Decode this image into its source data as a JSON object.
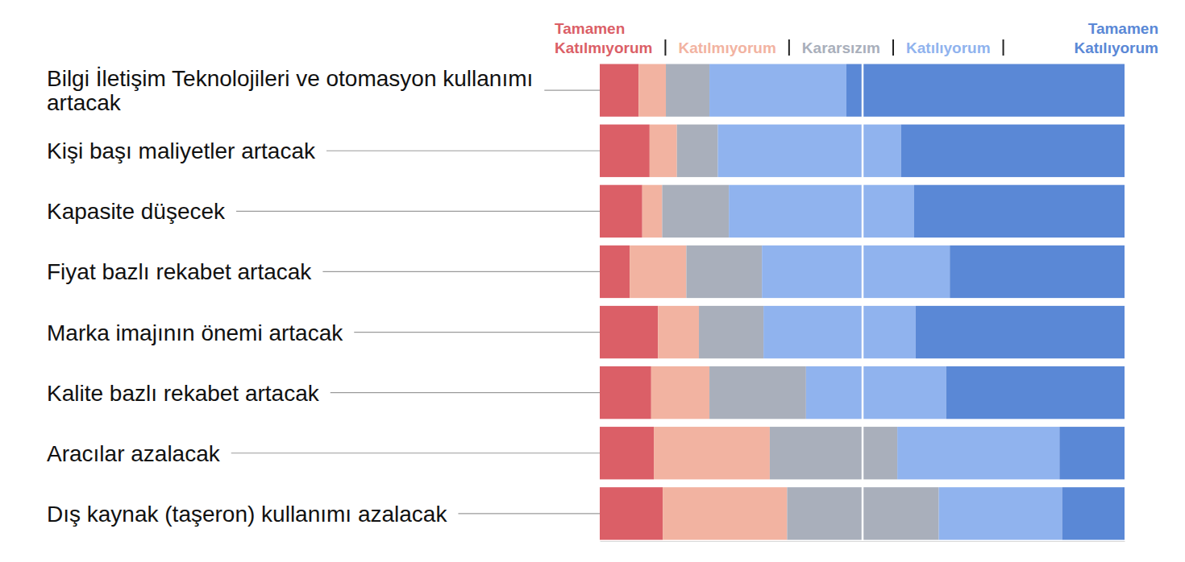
{
  "chart_data": {
    "type": "bar",
    "orientation": "horizontal",
    "stacked": true,
    "categories": [
      "Bilgi İletişim Teknolojileri ve otomasyon kullanımı artacak",
      "Kişi başı maliyetler artacak",
      "Kapasite düşecek",
      "Fiyat bazlı rekabet artacak",
      "Marka imajının önemi artacak",
      "Kalite bazlı rekabet artacak",
      "Aracılar azalacak",
      "Dış kaynak (taşeron) kullanımı azalacak"
    ],
    "series": [
      {
        "name": "Tamamen Katılmıyorum",
        "color": "#db5f67",
        "values": [
          7.4,
          9.5,
          8.1,
          5.7,
          11.1,
          9.8,
          10.3,
          12.0
        ]
      },
      {
        "name": "Katılmıyorum",
        "color": "#f2b3a1",
        "values": [
          5.2,
          5.2,
          3.8,
          10.8,
          7.8,
          11.1,
          22.1,
          23.7
        ]
      },
      {
        "name": "Kararsızım",
        "color": "#a9afbb",
        "values": [
          8.3,
          7.8,
          12.7,
          14.4,
          12.3,
          18.4,
          24.3,
          28.9
        ]
      },
      {
        "name": "Katılıyorum",
        "color": "#90b3ee",
        "values": [
          26.1,
          34.9,
          35.3,
          35.8,
          29.0,
          26.7,
          30.9,
          23.5
        ]
      },
      {
        "name": "Tamamen Katılıyorum",
        "color": "#5a88d6",
        "values": [
          53.0,
          42.6,
          40.1,
          33.3,
          39.8,
          34.0,
          12.4,
          11.9
        ]
      }
    ],
    "xlim": [
      0,
      100
    ],
    "xticks": [
      50
    ],
    "grid": true,
    "tick_labels": false,
    "legend": "top"
  }
}
